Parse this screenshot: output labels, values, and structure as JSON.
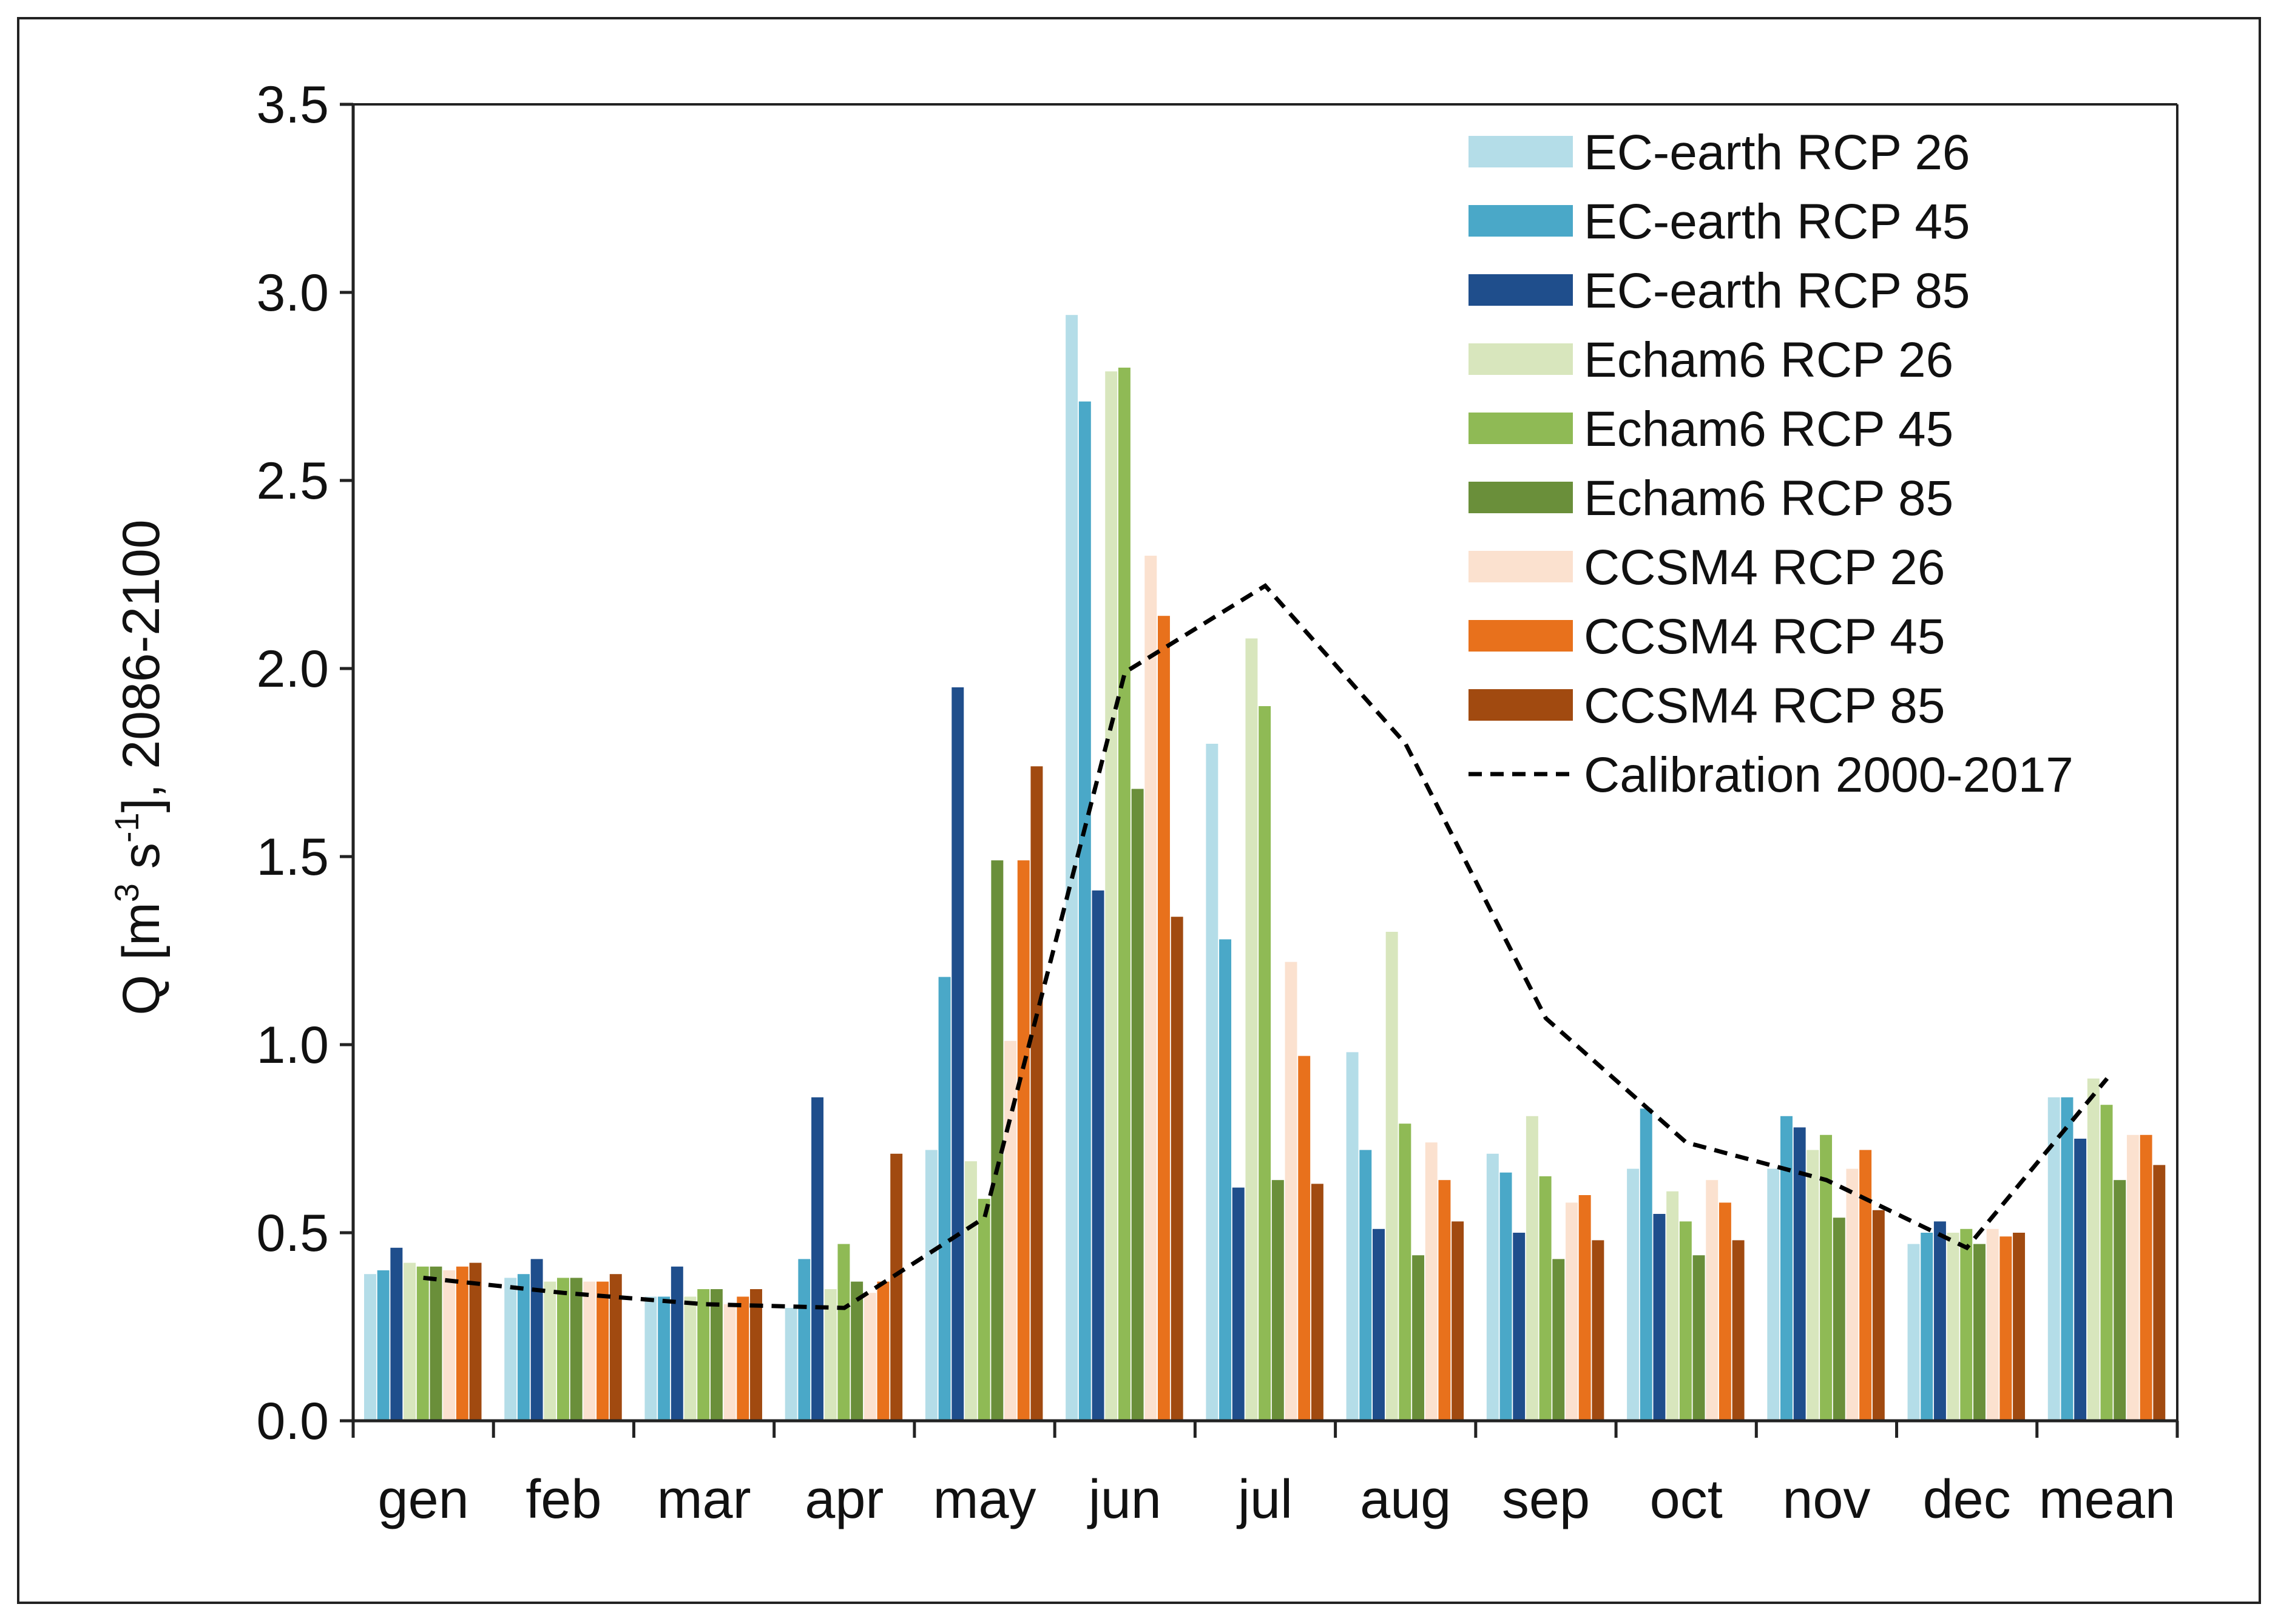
{
  "chart_data": {
    "type": "bar",
    "title": "",
    "xlabel": "",
    "ylabel": "Q [m3 s-1], 2086-2100",
    "ylabel_parts": {
      "pre": "Q [m",
      "sup1": "3",
      "mid": " s",
      "sup2": "-1",
      "post": "], 2086-2100"
    },
    "ylim": [
      0,
      3.5
    ],
    "yticks": [
      "0.0",
      "0.5",
      "1.0",
      "1.5",
      "2.0",
      "2.5",
      "3.0",
      "3.5"
    ],
    "grid": false,
    "legend_position": "top-right",
    "categories": [
      "gen",
      "feb",
      "mar",
      "apr",
      "may",
      "jun",
      "jul",
      "aug",
      "sep",
      "oct",
      "nov",
      "dec",
      "mean"
    ],
    "series": [
      {
        "name": "EC-earth RCP 26",
        "color": "#b4dde8",
        "values": [
          0.39,
          0.38,
          0.33,
          0.3,
          0.72,
          2.94,
          1.8,
          0.98,
          0.71,
          0.67,
          0.67,
          0.47,
          0.86
        ]
      },
      {
        "name": "EC-earth RCP 45",
        "color": "#4aa8c8",
        "values": [
          0.4,
          0.39,
          0.33,
          0.43,
          1.18,
          2.71,
          1.28,
          0.72,
          0.66,
          0.83,
          0.81,
          0.5,
          0.86
        ]
      },
      {
        "name": "EC-earth RCP 85",
        "color": "#1f4e8c",
        "values": [
          0.46,
          0.43,
          0.41,
          0.86,
          1.95,
          1.41,
          0.62,
          0.51,
          0.5,
          0.55,
          0.78,
          0.53,
          0.75
        ]
      },
      {
        "name": "Echam6 RCP 26",
        "color": "#d8e6bd",
        "values": [
          0.42,
          0.37,
          0.33,
          0.35,
          0.69,
          2.79,
          2.08,
          1.3,
          0.81,
          0.61,
          0.72,
          0.5,
          0.91
        ]
      },
      {
        "name": "Echam6 RCP 45",
        "color": "#8fba55",
        "values": [
          0.41,
          0.38,
          0.35,
          0.47,
          0.59,
          2.8,
          1.9,
          0.79,
          0.65,
          0.53,
          0.76,
          0.51,
          0.84
        ]
      },
      {
        "name": "Echam6 RCP 85",
        "color": "#6a8f3a",
        "values": [
          0.41,
          0.38,
          0.35,
          0.37,
          1.49,
          1.68,
          0.64,
          0.44,
          0.43,
          0.44,
          0.54,
          0.47,
          0.64
        ]
      },
      {
        "name": "CCSM4 RCP 26",
        "color": "#fbe1cf",
        "values": [
          0.4,
          0.37,
          0.31,
          0.34,
          1.01,
          2.3,
          1.22,
          0.74,
          0.58,
          0.64,
          0.67,
          0.51,
          0.76
        ]
      },
      {
        "name": "CCSM4 RCP 45",
        "color": "#e8711c",
        "values": [
          0.41,
          0.37,
          0.33,
          0.37,
          1.49,
          2.14,
          0.97,
          0.64,
          0.6,
          0.58,
          0.72,
          0.49,
          0.76
        ]
      },
      {
        "name": "CCSM4 RCP 85",
        "color": "#a14a10",
        "values": [
          0.42,
          0.39,
          0.35,
          0.71,
          1.74,
          1.34,
          0.63,
          0.53,
          0.48,
          0.48,
          0.56,
          0.5,
          0.68
        ]
      }
    ],
    "line_series": {
      "name": "Calibration 2000-2017",
      "style": "dashed",
      "color": "#000000",
      "values": [
        0.38,
        0.34,
        0.31,
        0.3,
        0.54,
        1.99,
        2.22,
        1.8,
        1.07,
        0.74,
        0.64,
        0.46,
        0.91
      ]
    }
  }
}
